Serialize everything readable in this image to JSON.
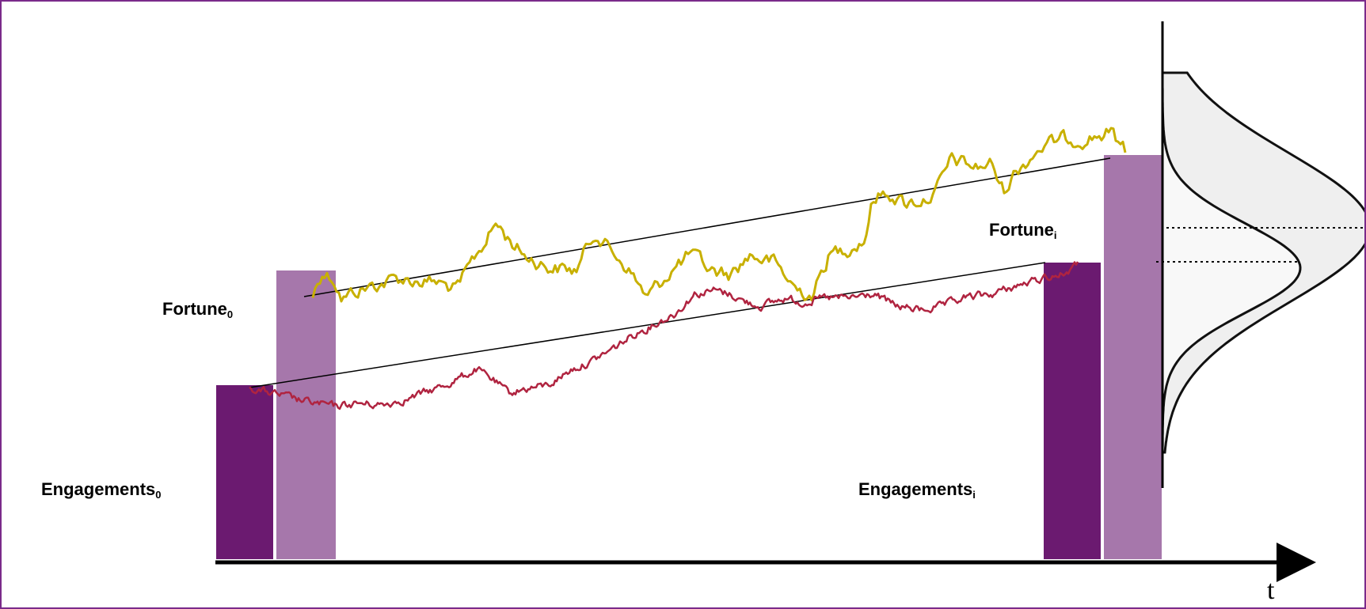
{
  "labels": {
    "fortune0": {
      "base": "Fortune",
      "sub": "0"
    },
    "engagements0": {
      "base": "Engagements",
      "sub": "0"
    },
    "fortuneI": {
      "base": "Fortune",
      "sub": "i"
    },
    "engagementsI": {
      "base": "Engagements",
      "sub": "i"
    },
    "time_axis": "t"
  },
  "colors": {
    "frame": "#7a2a8a",
    "engagements_bar": "#6b1a70",
    "fortune_bar": "#a677ab",
    "fortune_path": "#c8b000",
    "engagements_path": "#b02440",
    "trend_line": "#000000",
    "distribution_fill": "#efefef"
  }
}
